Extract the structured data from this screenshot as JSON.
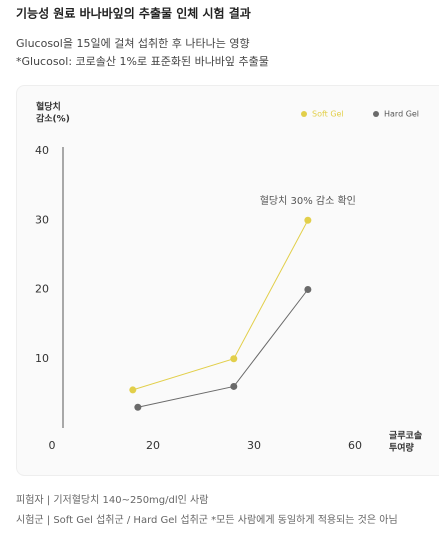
{
  "header": {
    "title": "기능성 원료 바나바잎의 추출물 인체 시험 결과",
    "subtitle": "Glucosol을 15일에 걸쳐 섭취한 후 나타나는 영향",
    "note": "*Glucosol: 코로솔산 1%로 표준화된 바나바잎 추출물"
  },
  "chart_data": {
    "type": "line",
    "y_label": [
      "혈당치",
      "감소(%)"
    ],
    "x_label": [
      "글루코솔",
      "투여량"
    ],
    "annotation": "혈당치 30% 감소 확인",
    "series": [
      {
        "name": "Soft Gel",
        "color": "#e2cf4a",
        "x": [
          16,
          28,
          46
        ],
        "values": [
          5.5,
          10,
          30
        ]
      },
      {
        "name": "Hard Gel",
        "color": "#6a6a6a",
        "x": [
          17,
          28,
          46
        ],
        "values": [
          3,
          6,
          20
        ]
      }
    ],
    "ylim": [
      0,
      40
    ],
    "yticks": [
      10,
      20,
      30,
      40
    ],
    "xticks": [
      0,
      20,
      30,
      60
    ],
    "legend": "top-right",
    "grid": false
  },
  "footer": {
    "subjects": "피험자 | 기저혈당치 140~250mg/dl인 사람",
    "groups": "시험군 | Soft Gel 섭취군 / Hard Gel 섭취군 *모든 사람에게 동일하게 적용되는 것은 아님"
  }
}
